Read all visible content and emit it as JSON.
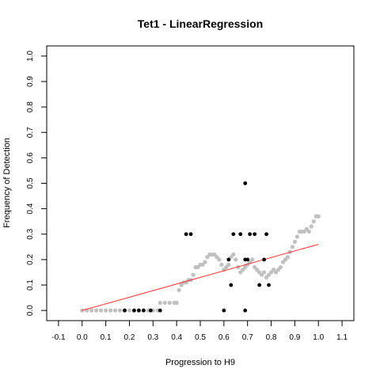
{
  "chart_data": {
    "type": "scatter",
    "title": "Tet1 - LinearRegression",
    "xlabel": "Progression to H9",
    "ylabel": "Frequency of Detection",
    "xlim": [
      -0.15,
      1.15
    ],
    "ylim": [
      -0.04,
      1.04
    ],
    "x_ticks": [
      -0.1,
      0.0,
      0.1,
      0.2,
      0.3,
      0.4,
      0.5,
      0.6,
      0.7,
      0.8,
      0.9,
      1.0,
      1.1
    ],
    "y_ticks": [
      0.0,
      0.1,
      0.2,
      0.3,
      0.4,
      0.5,
      0.6,
      0.7,
      0.8,
      0.9,
      1.0
    ],
    "grid": false,
    "colors": {
      "observed": "#000000",
      "smoothed": "#c0c0c0",
      "regression": "#ff3030"
    },
    "series": [
      {
        "points": [
          [
            0.18,
            0.0
          ],
          [
            0.22,
            0.0
          ],
          [
            0.24,
            0.0
          ],
          [
            0.26,
            0.0
          ],
          [
            0.29,
            0.0
          ],
          [
            0.33,
            0.0
          ],
          [
            0.44,
            0.3
          ],
          [
            0.46,
            0.3
          ],
          [
            0.6,
            0.0
          ],
          [
            0.62,
            0.2
          ],
          [
            0.63,
            0.1
          ],
          [
            0.64,
            0.3
          ],
          [
            0.67,
            0.3
          ],
          [
            0.69,
            0.5
          ],
          [
            0.69,
            0.2
          ],
          [
            0.7,
            0.2
          ],
          [
            0.69,
            0.0
          ],
          [
            0.71,
            0.3
          ],
          [
            0.73,
            0.3
          ],
          [
            0.75,
            0.1
          ],
          [
            0.77,
            0.2
          ],
          [
            0.78,
            0.3
          ],
          [
            0.79,
            0.1
          ]
        ]
      },
      {
        "points": [
          [
            0.0,
            0.0
          ],
          [
            0.02,
            0.0
          ],
          [
            0.04,
            0.0
          ],
          [
            0.06,
            0.0
          ],
          [
            0.08,
            0.0
          ],
          [
            0.1,
            0.0
          ],
          [
            0.12,
            0.0
          ],
          [
            0.14,
            0.0
          ],
          [
            0.16,
            0.0
          ],
          [
            0.18,
            0.0
          ],
          [
            0.2,
            0.0
          ],
          [
            0.22,
            0.0
          ],
          [
            0.24,
            0.0
          ],
          [
            0.26,
            0.0
          ],
          [
            0.28,
            0.0
          ],
          [
            0.3,
            0.0
          ],
          [
            0.32,
            0.0
          ],
          [
            0.33,
            0.03
          ],
          [
            0.35,
            0.03
          ],
          [
            0.37,
            0.03
          ],
          [
            0.39,
            0.03
          ],
          [
            0.4,
            0.03
          ],
          [
            0.41,
            0.08
          ],
          [
            0.42,
            0.1
          ],
          [
            0.43,
            0.11
          ],
          [
            0.44,
            0.11
          ],
          [
            0.45,
            0.12
          ],
          [
            0.46,
            0.12
          ],
          [
            0.47,
            0.14
          ],
          [
            0.48,
            0.17
          ],
          [
            0.49,
            0.17
          ],
          [
            0.5,
            0.18
          ],
          [
            0.51,
            0.18
          ],
          [
            0.52,
            0.19
          ],
          [
            0.53,
            0.21
          ],
          [
            0.54,
            0.22
          ],
          [
            0.55,
            0.22
          ],
          [
            0.56,
            0.22
          ],
          [
            0.57,
            0.21
          ],
          [
            0.58,
            0.2
          ],
          [
            0.59,
            0.18
          ],
          [
            0.6,
            0.16
          ],
          [
            0.61,
            0.17
          ],
          [
            0.62,
            0.18
          ],
          [
            0.63,
            0.21
          ],
          [
            0.64,
            0.22
          ],
          [
            0.65,
            0.2
          ],
          [
            0.66,
            0.17
          ],
          [
            0.67,
            0.15
          ],
          [
            0.68,
            0.16
          ],
          [
            0.69,
            0.17
          ],
          [
            0.7,
            0.18
          ],
          [
            0.71,
            0.19
          ],
          [
            0.72,
            0.2
          ],
          [
            0.73,
            0.17
          ],
          [
            0.74,
            0.16
          ],
          [
            0.75,
            0.15
          ],
          [
            0.76,
            0.14
          ],
          [
            0.77,
            0.15
          ],
          [
            0.78,
            0.13
          ],
          [
            0.79,
            0.14
          ],
          [
            0.8,
            0.15
          ],
          [
            0.81,
            0.16
          ],
          [
            0.82,
            0.15
          ],
          [
            0.83,
            0.16
          ],
          [
            0.84,
            0.17
          ],
          [
            0.85,
            0.19
          ],
          [
            0.86,
            0.2
          ],
          [
            0.87,
            0.21
          ],
          [
            0.88,
            0.23
          ],
          [
            0.89,
            0.25
          ],
          [
            0.9,
            0.27
          ],
          [
            0.91,
            0.29
          ],
          [
            0.92,
            0.31
          ],
          [
            0.93,
            0.31
          ],
          [
            0.94,
            0.31
          ],
          [
            0.95,
            0.32
          ],
          [
            0.96,
            0.31
          ],
          [
            0.97,
            0.33
          ],
          [
            0.98,
            0.35
          ],
          [
            0.99,
            0.37
          ],
          [
            1.0,
            0.37
          ]
        ]
      }
    ],
    "regression_line": {
      "from": [
        0.0,
        0.0
      ],
      "to": [
        1.0,
        0.26
      ]
    }
  }
}
